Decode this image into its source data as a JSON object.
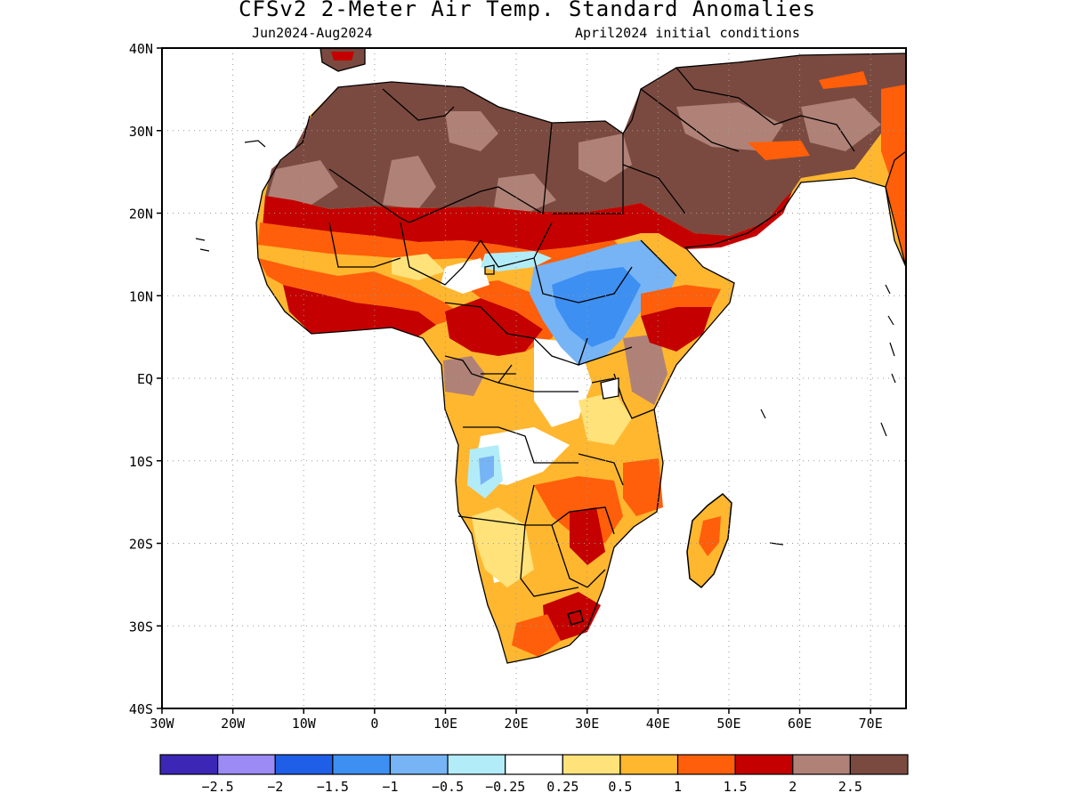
{
  "title": "CFSv2 2-Meter Air Temp. Standard Anomalies",
  "subtitle_left": "Jun2024-Aug2024",
  "subtitle_right": "April2024 initial conditions",
  "axes": {
    "lat_labels": [
      "40N",
      "30N",
      "20N",
      "10N",
      "EQ",
      "10S",
      "20S",
      "30S",
      "40S"
    ],
    "lat_values": [
      40,
      30,
      20,
      10,
      0,
      -10,
      -20,
      -30,
      -40
    ],
    "lon_labels": [
      "30W",
      "20W",
      "10W",
      "0",
      "10E",
      "20E",
      "30E",
      "40E",
      "50E",
      "60E",
      "70E"
    ],
    "lon_values": [
      -30,
      -20,
      -10,
      0,
      10,
      20,
      30,
      40,
      50,
      60,
      70
    ],
    "lon_range": [
      -30,
      75
    ],
    "lat_range": [
      -40,
      40
    ],
    "grid": "dotted"
  },
  "colorbar": {
    "colors": [
      "#3b26b5",
      "#9c8af5",
      "#1f5fe8",
      "#3d8ff2",
      "#76b4f6",
      "#b2ecf8",
      "#ffffff",
      "#ffe27a",
      "#ffb730",
      "#ff5f0a",
      "#c40000",
      "#b08277",
      "#7a4a40"
    ],
    "labels": [
      "-2.5",
      "-2",
      "-1.5",
      "-1",
      "-0.5",
      "-0.25",
      "0.25",
      "0.5",
      "1",
      "1.5",
      "2",
      "2.5"
    ]
  },
  "colors": {
    "land_outline": "#000000",
    "ocean": "#ffffff"
  }
}
